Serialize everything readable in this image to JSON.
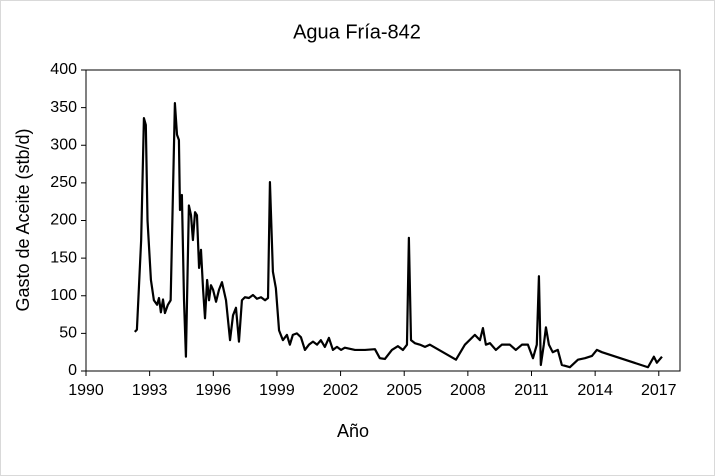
{
  "chart_data": {
    "type": "line",
    "title": "Agua Fría-842",
    "x_label": "Año",
    "y_label": "Gasto de Aceite (stb/d)",
    "xlim": [
      1990,
      2018
    ],
    "xticks": [
      1990,
      1993,
      1996,
      1999,
      2002,
      2005,
      2008,
      2011,
      2014,
      2017
    ],
    "ylim": [
      0,
      400
    ],
    "yticks": [
      0,
      50,
      100,
      150,
      200,
      250,
      300,
      350,
      400
    ],
    "grid": false,
    "series": [
      {
        "name": "Gasto de Aceite",
        "color": "#000000",
        "x": [
          1992.3,
          1992.4,
          1992.6,
          1992.73,
          1992.82,
          1992.9,
          1993.06,
          1993.2,
          1993.35,
          1993.44,
          1993.53,
          1993.63,
          1993.72,
          1993.86,
          1993.99,
          1994.19,
          1994.29,
          1994.38,
          1994.43,
          1994.52,
          1994.62,
          1994.71,
          1994.85,
          1994.95,
          1995.04,
          1995.14,
          1995.23,
          1995.33,
          1995.42,
          1995.52,
          1995.61,
          1995.71,
          1995.8,
          1995.89,
          1995.99,
          1996.13,
          1996.27,
          1996.41,
          1996.6,
          1996.79,
          1996.93,
          1997.07,
          1997.21,
          1997.35,
          1997.49,
          1997.68,
          1997.87,
          1998.06,
          1998.25,
          1998.44,
          1998.58,
          1998.67,
          1998.81,
          1998.95,
          1999.1,
          1999.28,
          1999.47,
          1999.61,
          1999.75,
          1999.94,
          2000.13,
          2000.32,
          2000.51,
          2000.7,
          2000.89,
          2001.07,
          2001.26,
          2001.45,
          2001.64,
          2001.83,
          2002.02,
          2002.2,
          2002.68,
          2003.15,
          2003.62,
          2003.85,
          2004.09,
          2004.42,
          2004.7,
          2004.94,
          2005.13,
          2005.22,
          2005.32,
          2005.5,
          2005.74,
          2005.98,
          2006.21,
          2007.44,
          2007.86,
          2008.33,
          2008.57,
          2008.71,
          2008.85,
          2009.04,
          2009.32,
          2009.6,
          2009.98,
          2010.26,
          2010.55,
          2010.83,
          2011.07,
          2011.25,
          2011.35,
          2011.44,
          2011.58,
          2011.68,
          2011.82,
          2012.0,
          2012.24,
          2012.43,
          2012.81,
          2013.19,
          2013.52,
          2013.85,
          2014.08,
          2014.32,
          2016.49,
          2016.77,
          2016.91,
          2017.15
        ],
        "values": [
          52,
          55,
          174,
          336,
          327,
          200,
          121,
          94,
          88,
          97,
          78,
          95,
          77,
          88,
          94,
          356,
          314,
          307,
          214,
          234,
          94,
          19,
          220,
          207,
          174,
          211,
          207,
          137,
          161,
          108,
          70,
          121,
          94,
          114,
          108,
          92,
          108,
          118,
          94,
          41,
          74,
          84,
          39,
          94,
          98,
          97,
          101,
          96,
          98,
          94,
          97,
          251,
          132,
          110,
          54,
          41,
          48,
          35,
          48,
          50,
          45,
          28,
          35,
          39,
          35,
          41,
          32,
          44,
          28,
          32,
          28,
          31,
          28,
          28,
          29,
          17,
          16,
          28,
          33,
          28,
          35,
          177,
          41,
          37,
          35,
          32,
          35,
          15,
          35,
          48,
          41,
          57,
          35,
          37,
          28,
          35,
          35,
          28,
          35,
          35,
          17,
          35,
          126,
          8,
          35,
          58,
          35,
          25,
          28,
          8,
          5,
          15,
          17,
          20,
          28,
          25,
          5,
          19,
          11,
          19
        ]
      }
    ]
  }
}
